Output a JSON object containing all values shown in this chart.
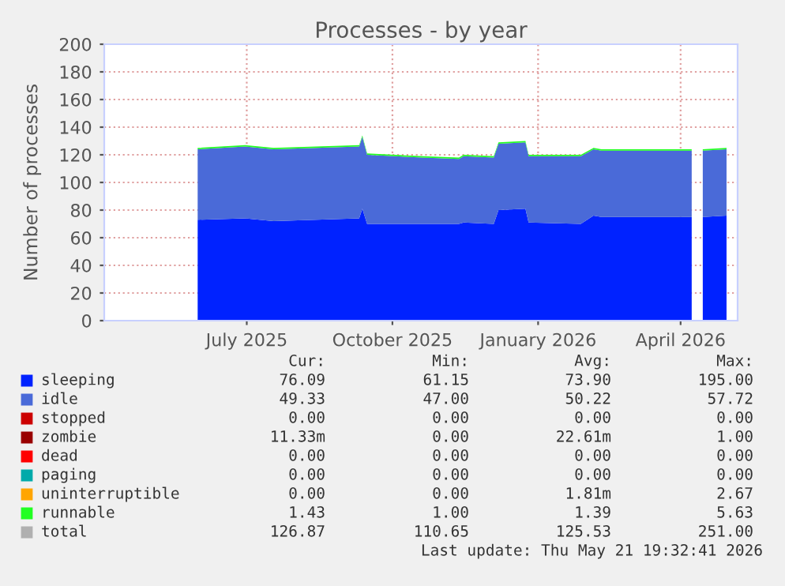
{
  "chart_data": {
    "type": "area",
    "stacked": true,
    "title": "Processes - by year",
    "ylabel": "Number of processes",
    "x": [
      "2025-06-14",
      "2025-07-14",
      "2025-08-01",
      "2025-08-28",
      "2025-09-24",
      "2025-09-26",
      "2025-09-29",
      "2025-11-03",
      "2025-11-26",
      "2025-11-29",
      "2025-12-18",
      "2025-12-21",
      "2026-01-07",
      "2026-01-09",
      "2026-02-11",
      "2026-02-19",
      "2026-02-24",
      "2026-04-22",
      "2026-04-26",
      "2026-04-29",
      "2026-05-14"
    ],
    "series": [
      {
        "name": "sleeping",
        "color": "#0022ff",
        "values": [
          73,
          74,
          72,
          73,
          74,
          81,
          70,
          70,
          70,
          71,
          70,
          80,
          81,
          71,
          70,
          76,
          75,
          75,
          null,
          75,
          76
        ]
      },
      {
        "name": "idle",
        "color": "#4a6ad8",
        "values": [
          51,
          52,
          52,
          52,
          52,
          52,
          50,
          48,
          47,
          48,
          48,
          48,
          48,
          48,
          49,
          48,
          48,
          48,
          null,
          48,
          48
        ]
      },
      {
        "name": "stopped",
        "color": "#cc0000",
        "values": [
          null,
          null,
          null,
          null,
          null,
          null,
          null,
          null,
          null,
          null,
          null,
          null,
          null,
          null,
          null,
          null,
          null,
          null,
          null,
          null,
          null
        ]
      },
      {
        "name": "zombie",
        "color": "#990000",
        "values": [
          null,
          null,
          null,
          null,
          null,
          null,
          null,
          null,
          null,
          null,
          null,
          null,
          null,
          null,
          null,
          null,
          null,
          null,
          null,
          null,
          null
        ]
      },
      {
        "name": "dead",
        "color": "#ff0000",
        "values": [
          null,
          null,
          null,
          null,
          null,
          null,
          null,
          null,
          null,
          null,
          null,
          null,
          null,
          null,
          null,
          null,
          null,
          null,
          null,
          null,
          null
        ]
      },
      {
        "name": "paging",
        "color": "#00aaaa",
        "values": [
          null,
          null,
          null,
          null,
          null,
          null,
          null,
          null,
          null,
          null,
          null,
          null,
          null,
          null,
          null,
          null,
          null,
          null,
          null,
          null,
          null
        ]
      },
      {
        "name": "uninterruptible",
        "color": "#ffa500",
        "values": [
          null,
          null,
          null,
          null,
          null,
          null,
          null,
          null,
          null,
          null,
          null,
          null,
          null,
          null,
          null,
          null,
          null,
          null,
          null,
          null,
          null
        ]
      },
      {
        "name": "runnable",
        "color": "#22ff22",
        "values": [
          1,
          1,
          1,
          1,
          1,
          1,
          1,
          1,
          1,
          1,
          1,
          1,
          1,
          1,
          1,
          1,
          1,
          1,
          null,
          1,
          1
        ]
      },
      {
        "name": "total",
        "color": "#b0b0b0",
        "values": [
          null,
          null,
          null,
          null,
          null,
          null,
          null,
          null,
          null,
          null,
          null,
          null,
          null,
          null,
          null,
          null,
          null,
          null,
          null,
          null,
          null
        ]
      }
    ],
    "xlim": [
      "2025-04-16",
      "2026-05-21"
    ],
    "xticks": [
      {
        "value": "2025-07-15",
        "label": "July 2025"
      },
      {
        "value": "2025-10-15",
        "label": "October 2025"
      },
      {
        "value": "2026-01-15",
        "label": "January 2026"
      },
      {
        "value": "2026-04-15",
        "label": "April 2026"
      }
    ],
    "ylim": [
      0,
      200
    ],
    "yticks": [
      0,
      20,
      40,
      60,
      80,
      100,
      120,
      140,
      160,
      180,
      200
    ],
    "grid": true,
    "legend": "bottom",
    "annotations": [
      "Cur:",
      "Min:",
      "Avg:",
      "Max:",
      "76.09",
      "61.15",
      "73.90",
      "195.00",
      "49.33",
      "47.00",
      "50.22",
      "57.72",
      "0.00",
      "0.00",
      "0.00",
      "0.00",
      "11.33m",
      "0.00",
      "22.61m",
      "1.00",
      "0.00",
      "0.00",
      "0.00",
      "0.00",
      "0.00",
      "0.00",
      "0.00",
      "0.00",
      "0.00",
      "0.00",
      "1.81m",
      "2.67",
      "1.43",
      "1.00",
      "1.39",
      "5.63",
      "126.87",
      "110.65",
      "125.53",
      "251.00",
      "Last update: Thu May 21 19:32:41 2026"
    ]
  }
}
